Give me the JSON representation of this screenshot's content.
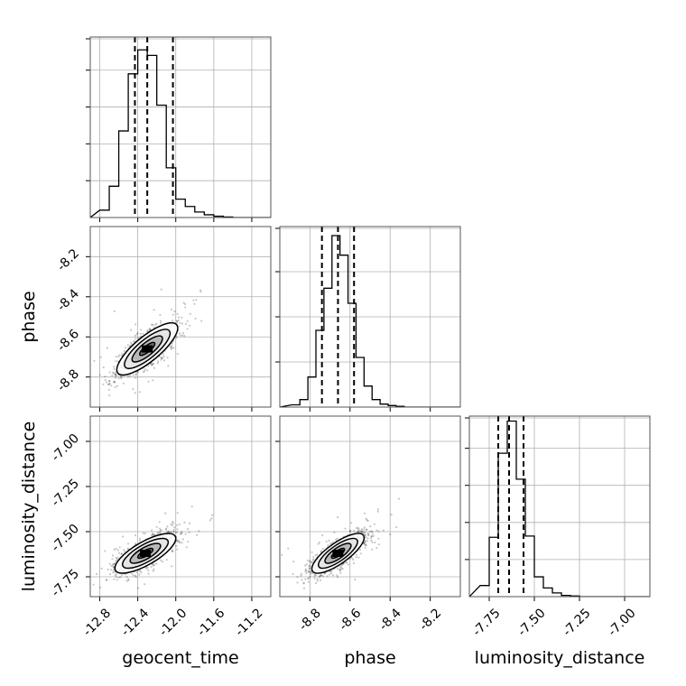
{
  "chart_data": {
    "type": "corner",
    "parameters": [
      "geocent_time",
      "phase",
      "luminosity_distance"
    ],
    "ranges": {
      "geocent_time": [
        -12.9,
        -11.0
      ],
      "phase": [
        -8.95,
        -8.05
      ],
      "luminosity_distance": [
        -7.86,
        -6.86
      ]
    },
    "ticks": {
      "geocent_time": [
        "-12.8",
        "-12.4",
        "-12.0",
        "-11.6",
        "-11.2"
      ],
      "phase": [
        "-8.8",
        "-8.6",
        "-8.4",
        "-8.2"
      ],
      "luminosity_distance": [
        "-7.75",
        "-7.50",
        "-7.25",
        "-7.00"
      ]
    },
    "marginals": {
      "geocent_time": {
        "bin_edges": [
          -12.8,
          -12.7,
          -12.6,
          -12.5,
          -12.4,
          -12.3,
          -12.2,
          -12.1,
          -12.0,
          -11.9,
          -11.8,
          -11.7,
          -11.6,
          -11.5,
          -11.4
        ],
        "counts": [
          4,
          17,
          47,
          78,
          91,
          88,
          61,
          27,
          10,
          6,
          3,
          1.5,
          0.7,
          0.3
        ],
        "ymax": 98,
        "quantiles": [
          -12.43,
          -12.3,
          -12.03
        ]
      },
      "phase": {
        "bin_edges": [
          -8.89,
          -8.85,
          -8.81,
          -8.77,
          -8.73,
          -8.69,
          -8.65,
          -8.61,
          -8.57,
          -8.53,
          -8.49,
          -8.45,
          -8.41,
          -8.37,
          -8.33,
          -8.29
        ],
        "counts": [
          1.5,
          5,
          20,
          51,
          79,
          114,
          101,
          69,
          33,
          14,
          5,
          2,
          1,
          0.5,
          0
        ],
        "ymax": 120,
        "quantiles": [
          -8.74,
          -8.66,
          -8.58
        ]
      },
      "luminosity_distance": {
        "bin_edges": [
          -7.8,
          -7.75,
          -7.7,
          -7.65,
          -7.6,
          -7.55,
          -7.5,
          -7.45,
          -7.4,
          -7.35,
          -7.3,
          -7.25
        ],
        "counts": [
          9,
          48,
          116,
          142,
          95,
          49,
          16,
          7,
          3,
          1,
          0.5
        ],
        "ymax": 146,
        "quantiles": [
          -7.7,
          -7.64,
          -7.56
        ]
      }
    },
    "joint": {
      "geocent_time__phase": {
        "mean": [
          -12.3,
          -8.66
        ],
        "sd": [
          0.16,
          0.065
        ],
        "corr": 0.8
      },
      "geocent_time__luminosity_distance": {
        "mean": [
          -12.32,
          -7.62
        ],
        "sd": [
          0.16,
          0.055
        ],
        "corr": 0.75
      },
      "phase__luminosity_distance": {
        "mean": [
          -8.66,
          -7.62
        ],
        "sd": [
          0.065,
          0.055
        ],
        "corr": 0.78
      }
    },
    "grid": true,
    "colors": {
      "line": "#000000",
      "grid": "#b0b0b0",
      "points": "#000000",
      "contour_fill": "#808080"
    }
  }
}
